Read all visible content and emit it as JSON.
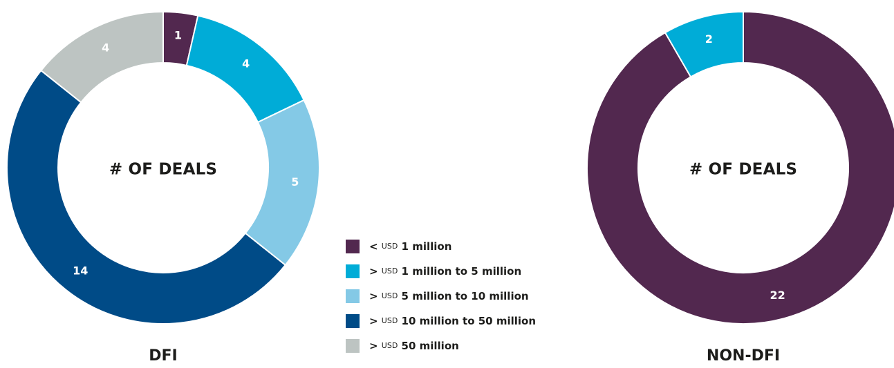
{
  "chart_data": [
    {
      "type": "pie",
      "title": "DFI",
      "center_label": "# OF DEALS",
      "categories": [
        "< USD 1 million",
        "> USD 1 million to 5 million",
        "> USD 5 million to 10 million",
        "> USD 10 million to 50 million",
        "> USD 50 million"
      ],
      "values": [
        1,
        4,
        5,
        14,
        4
      ],
      "donut": true
    },
    {
      "type": "pie",
      "title": "NON-DFI",
      "center_label": "# OF DEALS",
      "categories": [
        "< USD 1 million",
        "> USD 1 million to 5 million"
      ],
      "values": [
        22,
        2
      ],
      "donut": true
    }
  ],
  "legend": {
    "items": [
      {
        "symbol": "<",
        "unit": "USD",
        "text": "1 million",
        "color": "#52284f"
      },
      {
        "symbol": ">",
        "unit": "USD",
        "text": "1 million to 5 million",
        "color": "#00acd7"
      },
      {
        "symbol": ">",
        "unit": "USD",
        "text": "5 million to 10 million",
        "color": "#84c9e6"
      },
      {
        "symbol": ">",
        "unit": "USD",
        "text": "10 million to 50 million",
        "color": "#004b87"
      },
      {
        "symbol": ">",
        "unit": "USD",
        "text": "50 million",
        "color": "#bdc4c2"
      }
    ]
  },
  "colors": {
    "lt_1m": "#52284f",
    "1m_5m": "#00acd7",
    "5m_10m": "#84c9e6",
    "10m_50m": "#004b87",
    "gt_50m": "#bdc4c2"
  }
}
